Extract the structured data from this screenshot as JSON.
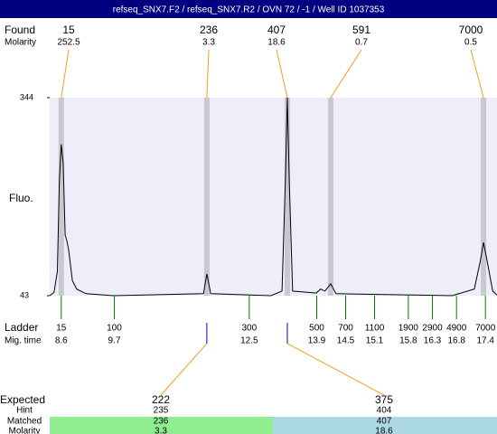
{
  "chart_data": {
    "type": "line",
    "title": "refseq_SNX7.F2 / refseq_SNX7.R2 / OVN 72 / -1 / Well ID 1037353",
    "y_label": "Fluo.",
    "xlim": [
      8.36,
      17.64
    ],
    "ylim": [
      43,
      344
    ],
    "yticks": [
      43,
      344
    ],
    "color": "#000000",
    "x": [
      8.36,
      8.45,
      8.52,
      8.56,
      8.6,
      8.64,
      8.68,
      8.71,
      8.75,
      8.83,
      8.92,
      9.11,
      9.67,
      11.55,
      11.62,
      11.7,
      12.95,
      13.18,
      13.25,
      13.29,
      13.33,
      13.4,
      13.89,
      13.98,
      14.07,
      14.19,
      14.3,
      16.71,
      17.17,
      17.29,
      17.36,
      17.44,
      17.55,
      17.64
    ],
    "values": [
      43,
      48,
      80,
      218,
      273,
      245,
      135,
      128,
      114,
      66,
      53,
      46,
      43,
      46,
      76,
      46,
      43,
      50,
      218,
      344,
      218,
      50,
      47,
      53,
      50,
      61,
      46,
      43,
      53,
      94,
      124,
      94,
      50,
      44
    ],
    "found": {
      "label": "Found",
      "molarity_label": "Molarity",
      "sizes": [
        15,
        236,
        407,
        591,
        7000
      ],
      "molarity": [
        252.5,
        3.3,
        18.6,
        0.7,
        0.5
      ],
      "times": [
        8.6,
        11.62,
        13.29,
        14.19,
        17.36
      ]
    },
    "ladder": {
      "label": "Ladder",
      "time_label": "Mig. time",
      "sizes": [
        15,
        100,
        300,
        500,
        700,
        1100,
        1900,
        2900,
        4900,
        7000
      ],
      "times": [
        8.6,
        9.7,
        12.5,
        13.9,
        14.5,
        15.1,
        15.8,
        16.3,
        16.8,
        17.4
      ]
    },
    "expected": {
      "label": "Expected",
      "hint_label": "Hint",
      "matched_label": "Matched",
      "molarity_label": "Molarity",
      "sizes": [
        222,
        375
      ],
      "hint": [
        235,
        404
      ],
      "matched": [
        236,
        407
      ],
      "molarity": [
        3.3,
        18.6
      ]
    }
  }
}
